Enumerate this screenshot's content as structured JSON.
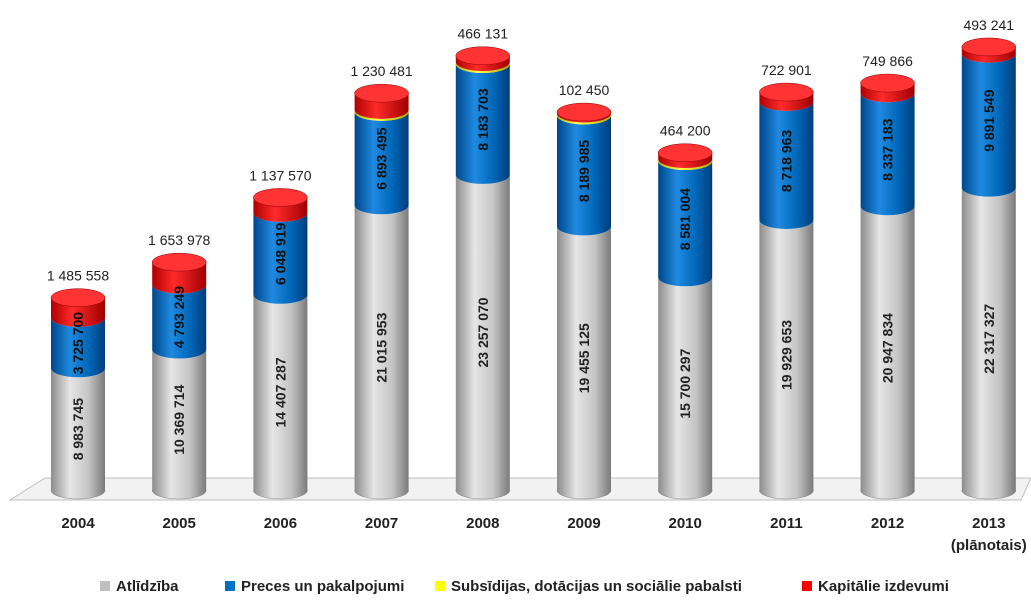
{
  "chart_data": {
    "type": "bar",
    "stacked": true,
    "style": "3d-cylinder",
    "categories": [
      "2004",
      "2005",
      "2006",
      "2007",
      "2008",
      "2009",
      "2010",
      "2011",
      "2012",
      "2013"
    ],
    "category_sublabels": [
      "",
      "",
      "",
      "",
      "",
      "",
      "",
      "",
      "",
      "(plānotais)"
    ],
    "series": [
      {
        "name": "Atlīdzība",
        "color": "#BFBFBF",
        "values": [
          8983745,
          10369714,
          14407287,
          21015953,
          23257070,
          19455125,
          15700297,
          19929653,
          20947834,
          22317327
        ],
        "labels": [
          "8 983 745",
          "10 369 714",
          "14 407 287",
          "21 015 953",
          "23 257 070",
          "19 455 125",
          "15 700 297",
          "19 929 653",
          "20 947 834",
          "22 317 327"
        ]
      },
      {
        "name": "Preces un pakalpojumi",
        "color": "#0070C0",
        "values": [
          3725700,
          4793249,
          6048919,
          6893495,
          8183703,
          8189985,
          8581004,
          8718963,
          8337183,
          9891549
        ],
        "labels": [
          "3 725 700",
          "4 793 249",
          "6 048 919",
          "6 893 495",
          "8 183 703",
          "8 189 985",
          "8 581 004",
          "8 718 963",
          "8 337 183",
          "9 891 549"
        ]
      },
      {
        "name": "Subsīdijas, dotācijas un sociālie pabalsti",
        "color": "#FFFF00",
        "values": [
          0,
          0,
          0,
          50000,
          50000,
          50000,
          50000,
          0,
          0,
          0
        ],
        "labels": [
          "",
          "",
          "",
          "",
          "",
          "",
          "",
          "",
          "",
          ""
        ]
      },
      {
        "name": "Kapitālie izdevumi",
        "color": "#FF0000",
        "values": [
          1485558,
          1653978,
          1137570,
          1230481,
          466131,
          102450,
          464200,
          722901,
          749866,
          493241
        ],
        "labels": [
          "1 485 558",
          "1 653 978",
          "1 137 570",
          "1 230 481",
          "466 131",
          "102 450",
          "464 200",
          "722 901",
          "749 866",
          "493 241"
        ]
      }
    ],
    "ylim": [
      0,
      34000000
    ],
    "grid": false,
    "legend_position": "bottom",
    "title": "",
    "xlabel": "",
    "ylabel": ""
  }
}
